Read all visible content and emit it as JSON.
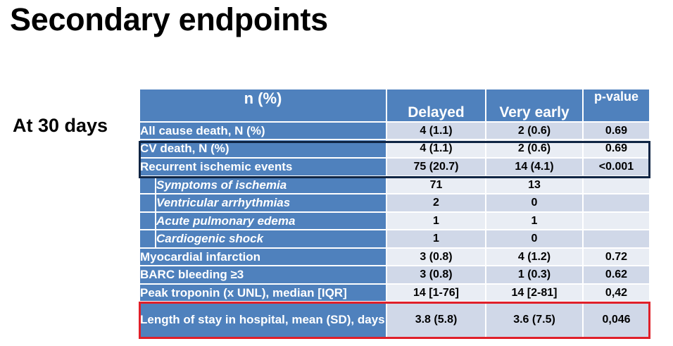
{
  "title": "Secondary endpoints",
  "side_label": "At 30 days",
  "table": {
    "headers": {
      "label": "n (%)",
      "delayed": "Delayed",
      "very_early": "Very early",
      "p_value": "p-value"
    },
    "rows": [
      {
        "label": "All cause death, N (%)",
        "delayed": "4 (1.1)",
        "very_early": "2 (0.6)",
        "p": "0.69",
        "indent": false
      },
      {
        "label": "CV death, N (%)",
        "delayed": "4 (1.1)",
        "very_early": "2 (0.6)",
        "p": "0.69",
        "indent": false
      },
      {
        "label": "Recurrent ischemic events",
        "delayed": "75 (20.7)",
        "very_early": "14 (4.1)",
        "p": "<0.001",
        "indent": false
      },
      {
        "label": "Symptoms of ischemia",
        "delayed": "71",
        "very_early": "13",
        "p": "",
        "indent": true
      },
      {
        "label": "Ventricular arrhythmias",
        "delayed": "2",
        "very_early": "0",
        "p": "",
        "indent": true
      },
      {
        "label": "Acute pulmonary edema",
        "delayed": "1",
        "very_early": "1",
        "p": "",
        "indent": true
      },
      {
        "label": "Cardiogenic shock",
        "delayed": "1",
        "very_early": "0",
        "p": "",
        "indent": true
      },
      {
        "label": "Myocardial infarction",
        "delayed": "3 (0.8)",
        "very_early": "4 (1.2)",
        "p": "0.72",
        "indent": false
      },
      {
        "label": "BARC bleeding ≥3",
        "delayed": "3 (0.8)",
        "very_early": "1 (0.3)",
        "p": "0.62",
        "indent": false
      },
      {
        "label": "Peak troponin (x UNL), median [IQR]",
        "delayed": "14 [1-76]",
        "very_early": "14 [2-81]",
        "p": "0,42",
        "indent": false
      },
      {
        "label": "Length of stay in hospital, mean (SD), days",
        "delayed": "3.8 (5.8)",
        "very_early": "3.6 (7.5)",
        "p": "0,046",
        "indent": false
      }
    ]
  },
  "highlights": {
    "blue_box_color": "#0f2544",
    "red_box_color": "#e0202a",
    "header_color": "#4f81bd"
  }
}
